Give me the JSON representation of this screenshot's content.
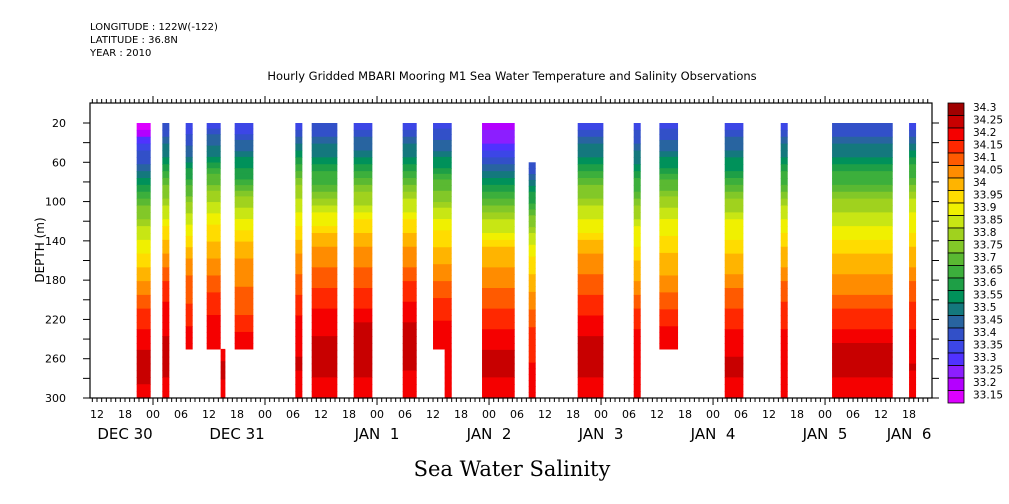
{
  "header": {
    "longitude": "LONGITUDE : 122W(-122)",
    "latitude": "LATITUDE : 36.8N",
    "year": "YEAR : 2010"
  },
  "chart_data": {
    "type": "heatmap",
    "title": "Hourly Gridded MBARI Mooring M1 Sea Water Temperature and Salinity Observations",
    "variable_label": "Sea Water Salinity",
    "ylabel": "DEPTH (m)",
    "xlabel": "",
    "y_reversed": true,
    "ylim": [
      0,
      300
    ],
    "y_ticks": [
      20,
      60,
      100,
      140,
      180,
      220,
      260,
      300
    ],
    "x_range_hours_from_dec30_12": [
      0,
      180
    ],
    "x_tick_labels": [
      "12",
      "18",
      "00",
      "06",
      "12",
      "18",
      "00",
      "06",
      "12",
      "18",
      "00",
      "06",
      "12",
      "18",
      "00",
      "06",
      "12",
      "18",
      "00",
      "06",
      "12",
      "18",
      "00",
      "06",
      "12",
      "18",
      "00",
      "06",
      "12",
      "18",
      "00",
      "06",
      "12"
    ],
    "x_tick_hours": [
      0,
      6,
      12,
      18,
      24,
      30,
      36,
      42,
      48,
      54,
      60,
      66,
      72,
      78,
      84,
      90,
      96,
      102,
      108,
      114,
      120,
      126,
      132,
      138,
      144,
      150,
      156,
      162,
      168,
      174,
      180,
      186,
      192
    ],
    "date_labels": [
      {
        "label": "DEC 30",
        "hour": 6
      },
      {
        "label": "DEC 31",
        "hour": 30
      },
      {
        "label": "JAN  1",
        "hour": 60
      },
      {
        "label": "JAN  2",
        "hour": 84
      },
      {
        "label": "JAN  3",
        "hour": 108
      },
      {
        "label": "JAN  4",
        "hour": 132
      },
      {
        "label": "JAN  5",
        "hour": 156
      },
      {
        "label": "JAN  6",
        "hour": 174
      }
    ],
    "colorbar": {
      "levels": [
        "34.3",
        "34.25",
        "34.2",
        "34.15",
        "34.1",
        "34.05",
        "34",
        "33.95",
        "33.9",
        "33.85",
        "33.8",
        "33.75",
        "33.7",
        "33.65",
        "33.6",
        "33.55",
        "33.5",
        "33.45",
        "33.4",
        "33.35",
        "33.3",
        "33.25",
        "33.2",
        "33.15"
      ],
      "colors": [
        "#a00000",
        "#c80000",
        "#f50000",
        "#ff2800",
        "#ff5a00",
        "#ff8c00",
        "#ffb400",
        "#ffdc00",
        "#f0f000",
        "#c8e614",
        "#a0d21e",
        "#82c828",
        "#5ab932",
        "#3caf3c",
        "#1e9f46",
        "#00915a",
        "#14787d",
        "#2864a0",
        "#3250c8",
        "#3c46e6",
        "#5032ff",
        "#8c1eff",
        "#b400ff",
        "#dc00ff"
      ]
    },
    "columns": [
      {
        "start_h": 8.5,
        "end_h": 11.5,
        "top_depth": 20,
        "bottom_depth": 300,
        "profile": [
          0.02,
          0.18,
          0.32,
          0.46,
          0.58,
          0.66,
          0.74,
          0.82,
          0.88,
          0.93,
          0.96,
          0.91
        ]
      },
      {
        "start_h": 14,
        "end_h": 15.5,
        "top_depth": 20,
        "bottom_depth": 300,
        "profile": [
          0.2,
          0.3,
          0.44,
          0.56,
          0.66,
          0.74,
          0.82,
          0.88,
          0.92,
          0.95,
          0.94,
          0.91
        ]
      },
      {
        "start_h": 19,
        "end_h": 20.5,
        "top_depth": 20,
        "bottom_depth": 250,
        "profile": [
          0.17,
          0.25,
          0.4,
          0.52,
          0.63,
          0.72,
          0.8,
          0.84,
          0.88,
          0.92
        ]
      },
      {
        "start_h": 23.5,
        "end_h": 26.5,
        "top_depth": 20,
        "bottom_depth": 250,
        "profile": [
          0.19,
          0.3,
          0.46,
          0.58,
          0.67,
          0.74,
          0.8,
          0.86,
          0.9,
          0.93
        ]
      },
      {
        "start_h": 26.5,
        "end_h": 27.5,
        "top_depth": 250,
        "bottom_depth": 300,
        "profile": [
          0.93,
          0.94,
          0.92
        ]
      },
      {
        "start_h": 29.5,
        "end_h": 33.5,
        "top_depth": 20,
        "bottom_depth": 250,
        "profile": [
          0.17,
          0.28,
          0.4,
          0.55,
          0.66,
          0.74,
          0.78,
          0.82,
          0.86,
          0.92
        ]
      },
      {
        "start_h": 42.5,
        "end_h": 44,
        "top_depth": 20,
        "bottom_depth": 300,
        "profile": [
          0.19,
          0.32,
          0.48,
          0.6,
          0.66,
          0.75,
          0.8,
          0.86,
          0.9,
          0.93,
          0.94,
          0.9
        ]
      },
      {
        "start_h": 46,
        "end_h": 51.5,
        "top_depth": 20,
        "bottom_depth": 300,
        "profile": [
          0.2,
          0.3,
          0.42,
          0.56,
          0.68,
          0.77,
          0.82,
          0.87,
          0.92,
          0.95,
          0.95,
          0.9
        ]
      },
      {
        "start_h": 55,
        "end_h": 59,
        "top_depth": 20,
        "bottom_depth": 300,
        "profile": [
          0.18,
          0.3,
          0.44,
          0.57,
          0.68,
          0.77,
          0.82,
          0.87,
          0.93,
          0.97,
          0.96,
          0.9
        ]
      },
      {
        "start_h": 65.5,
        "end_h": 68.5,
        "top_depth": 20,
        "bottom_depth": 300,
        "profile": [
          0.19,
          0.3,
          0.46,
          0.58,
          0.68,
          0.76,
          0.82,
          0.88,
          0.93,
          0.97,
          0.94,
          0.9
        ]
      },
      {
        "start_h": 72,
        "end_h": 76,
        "top_depth": 20,
        "bottom_depth": 250,
        "profile": [
          0.18,
          0.28,
          0.42,
          0.54,
          0.65,
          0.72,
          0.78,
          0.84,
          0.9,
          0.93
        ]
      },
      {
        "start_h": 74.5,
        "end_h": 76,
        "top_depth": 250,
        "bottom_depth": 300,
        "profile": [
          0.93,
          0.92,
          0.9
        ]
      },
      {
        "start_h": 82.5,
        "end_h": 89.5,
        "top_depth": 20,
        "bottom_depth": 300,
        "profile": [
          0.04,
          0.16,
          0.32,
          0.48,
          0.6,
          0.72,
          0.78,
          0.82,
          0.88,
          0.93,
          0.95,
          0.91
        ]
      },
      {
        "start_h": 92.5,
        "end_h": 94,
        "top_depth": 60,
        "bottom_depth": 300,
        "profile": [
          0.2,
          0.35,
          0.5,
          0.62,
          0.7,
          0.76,
          0.83,
          0.87,
          0.9,
          0.92
        ]
      },
      {
        "start_h": 103,
        "end_h": 108.5,
        "top_depth": 20,
        "bottom_depth": 300,
        "profile": [
          0.19,
          0.3,
          0.44,
          0.56,
          0.65,
          0.74,
          0.8,
          0.86,
          0.9,
          0.95,
          0.95,
          0.91
        ]
      },
      {
        "start_h": 115,
        "end_h": 116.5,
        "top_depth": 20,
        "bottom_depth": 300,
        "profile": [
          0.19,
          0.27,
          0.38,
          0.52,
          0.62,
          0.68,
          0.74,
          0.82,
          0.88,
          0.92,
          0.93,
          0.9
        ]
      },
      {
        "start_h": 120.5,
        "end_h": 124.5,
        "top_depth": 20,
        "bottom_depth": 250,
        "profile": [
          0.19,
          0.28,
          0.42,
          0.56,
          0.64,
          0.7,
          0.76,
          0.82,
          0.88,
          0.93
        ]
      },
      {
        "start_h": 134.5,
        "end_h": 138.5,
        "top_depth": 20,
        "bottom_depth": 300,
        "profile": [
          0.19,
          0.28,
          0.4,
          0.54,
          0.64,
          0.7,
          0.76,
          0.83,
          0.88,
          0.93,
          0.94,
          0.91
        ]
      },
      {
        "start_h": 146.5,
        "end_h": 148,
        "top_depth": 20,
        "bottom_depth": 300,
        "profile": [
          0.19,
          0.3,
          0.42,
          0.56,
          0.66,
          0.72,
          0.78,
          0.84,
          0.88,
          0.93,
          0.93,
          0.9
        ]
      },
      {
        "start_h": 157.5,
        "end_h": 170.5,
        "top_depth": 20,
        "bottom_depth": 300,
        "profile": [
          0.2,
          0.3,
          0.42,
          0.54,
          0.63,
          0.7,
          0.75,
          0.82,
          0.88,
          0.94,
          0.95,
          0.91
        ]
      },
      {
        "start_h": 174,
        "end_h": 175.5,
        "top_depth": 20,
        "bottom_depth": 300,
        "profile": [
          0.19,
          0.32,
          0.46,
          0.58,
          0.66,
          0.72,
          0.78,
          0.84,
          0.88,
          0.92,
          0.94,
          0.9
        ]
      }
    ]
  }
}
